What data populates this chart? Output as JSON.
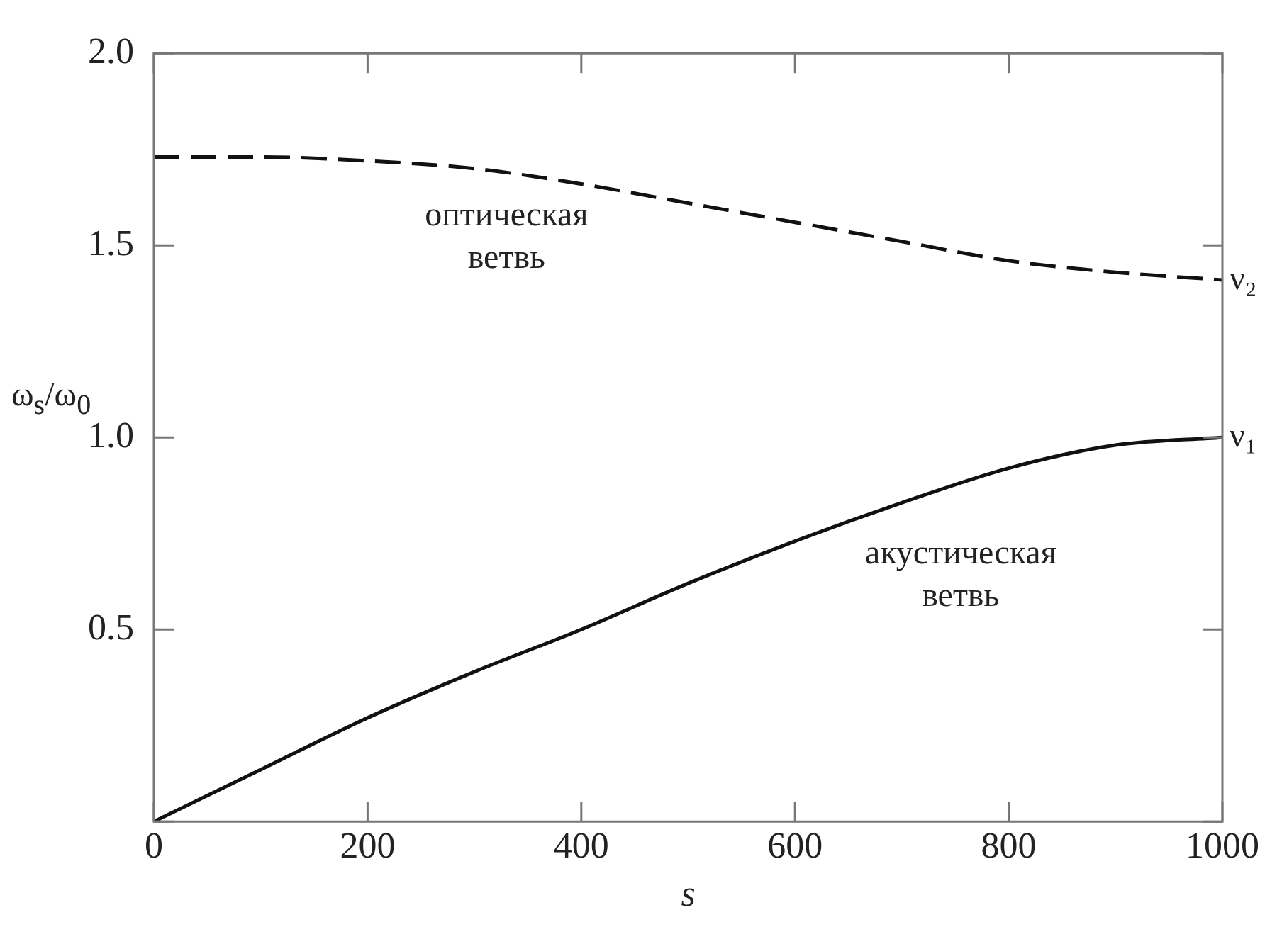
{
  "chart_data": {
    "type": "line",
    "xlabel": "s",
    "ylabel": "ω$_{s}$/ω$_{0}$",
    "x": [
      0,
      100,
      200,
      300,
      400,
      500,
      600,
      700,
      800,
      900,
      1000
    ],
    "series": [
      {
        "color": "#111111",
        "line_style": "dashed",
        "values": [
          1.73,
          1.73,
          1.72,
          1.7,
          1.66,
          1.61,
          1.56,
          1.51,
          1.46,
          1.43,
          1.41
        ]
      },
      {
        "color": "#111111",
        "line_style": "solid",
        "values": [
          0,
          0.135,
          0.27,
          0.39,
          0.5,
          0.62,
          0.73,
          0.83,
          0.92,
          0.98,
          1.0
        ]
      }
    ],
    "xlim": [
      0,
      1000
    ],
    "xticks": [
      0,
      200,
      400,
      600,
      800,
      1000
    ],
    "ylim": [
      0,
      2
    ],
    "yticks": [
      {
        "value": 0,
        "label": null
      },
      0.5,
      {
        "value": 1,
        "label": "1.0"
      },
      1.5,
      {
        "value": 2,
        "label": "2.0"
      }
    ],
    "marker": "none",
    "grid": false,
    "annotations": [
      "оптическая ветвь",
      "акустическая ветвь",
      {
        "text": "ν₂",
        "x": 1000,
        "y": 1.41
      },
      {
        "text": "ν₁",
        "x": 1000,
        "y": 1.0
      }
    ]
  }
}
